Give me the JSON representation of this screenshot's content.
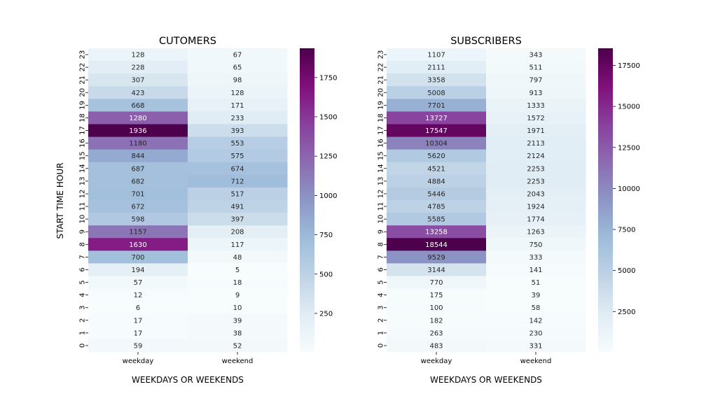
{
  "colors": {
    "colormap": [
      "#f7fcfd",
      "#e0ecf4",
      "#bfd3e6",
      "#9ebcda",
      "#8c96c6",
      "#8c6bb1",
      "#88419d",
      "#810f7c",
      "#4d004b"
    ],
    "text_dark": "#262626",
    "text_light": "#ffffff"
  },
  "shared": {
    "ylabel": "START TIME HOUR"
  },
  "chart_data": [
    {
      "type": "heatmap",
      "title": "CUTOMERS",
      "xlabel": "WEEKDAYS OR WEEKENDS",
      "ylabel": "START TIME HOUR",
      "x_categories": [
        "weekday",
        "weekend"
      ],
      "y_categories": [
        "23",
        "22",
        "21",
        "20",
        "19",
        "18",
        "17",
        "16",
        "15",
        "14",
        "13",
        "12",
        "11",
        "10",
        "9",
        "8",
        "7",
        "6",
        "5",
        "4",
        "3",
        "2",
        "1",
        "0"
      ],
      "values": [
        [
          128,
          67
        ],
        [
          228,
          65
        ],
        [
          307,
          98
        ],
        [
          423,
          128
        ],
        [
          668,
          171
        ],
        [
          1280,
          233
        ],
        [
          1936,
          393
        ],
        [
          1180,
          553
        ],
        [
          844,
          575
        ],
        [
          687,
          674
        ],
        [
          682,
          712
        ],
        [
          701,
          517
        ],
        [
          672,
          491
        ],
        [
          598,
          397
        ],
        [
          1157,
          208
        ],
        [
          1630,
          117
        ],
        [
          700,
          48
        ],
        [
          194,
          5
        ],
        [
          57,
          18
        ],
        [
          12,
          9
        ],
        [
          6,
          10
        ],
        [
          17,
          39
        ],
        [
          17,
          38
        ],
        [
          59,
          52
        ]
      ],
      "color_range": [
        5,
        1936
      ],
      "colorbar_ticks": [
        250,
        500,
        750,
        1000,
        1250,
        1500,
        1750
      ],
      "colorbar_tick_labels": [
        "250",
        "500",
        "750",
        "1000",
        "1250",
        "1500",
        "1750"
      ]
    },
    {
      "type": "heatmap",
      "title": "SUBSCRIBERS",
      "xlabel": "WEEKDAYS OR WEEKENDS",
      "ylabel": "",
      "x_categories": [
        "weekday",
        "weekend"
      ],
      "y_categories": [
        "23",
        "22",
        "21",
        "20",
        "19",
        "18",
        "17",
        "16",
        "15",
        "14",
        "13",
        "12",
        "11",
        "10",
        "9",
        "8",
        "7",
        "6",
        "5",
        "4",
        "3",
        "2",
        "1",
        "0"
      ],
      "values": [
        [
          1107,
          343
        ],
        [
          2111,
          511
        ],
        [
          3358,
          797
        ],
        [
          5008,
          913
        ],
        [
          7701,
          1333
        ],
        [
          13727,
          1572
        ],
        [
          17547,
          1971
        ],
        [
          10304,
          2113
        ],
        [
          5620,
          2124
        ],
        [
          4521,
          2253
        ],
        [
          4884,
          2253
        ],
        [
          5446,
          2043
        ],
        [
          4785,
          1924
        ],
        [
          5585,
          1774
        ],
        [
          13258,
          1263
        ],
        [
          18544,
          750
        ],
        [
          9529,
          333
        ],
        [
          3144,
          141
        ],
        [
          770,
          51
        ],
        [
          175,
          39
        ],
        [
          100,
          58
        ],
        [
          182,
          142
        ],
        [
          263,
          230
        ],
        [
          483,
          331
        ]
      ],
      "color_range": [
        39,
        18544
      ],
      "colorbar_ticks": [
        2500,
        5000,
        7500,
        10000,
        12500,
        15000,
        17500
      ],
      "colorbar_tick_labels": [
        "2500",
        "5000",
        "7500",
        "10000",
        "12500",
        "15000",
        "17500"
      ]
    }
  ]
}
